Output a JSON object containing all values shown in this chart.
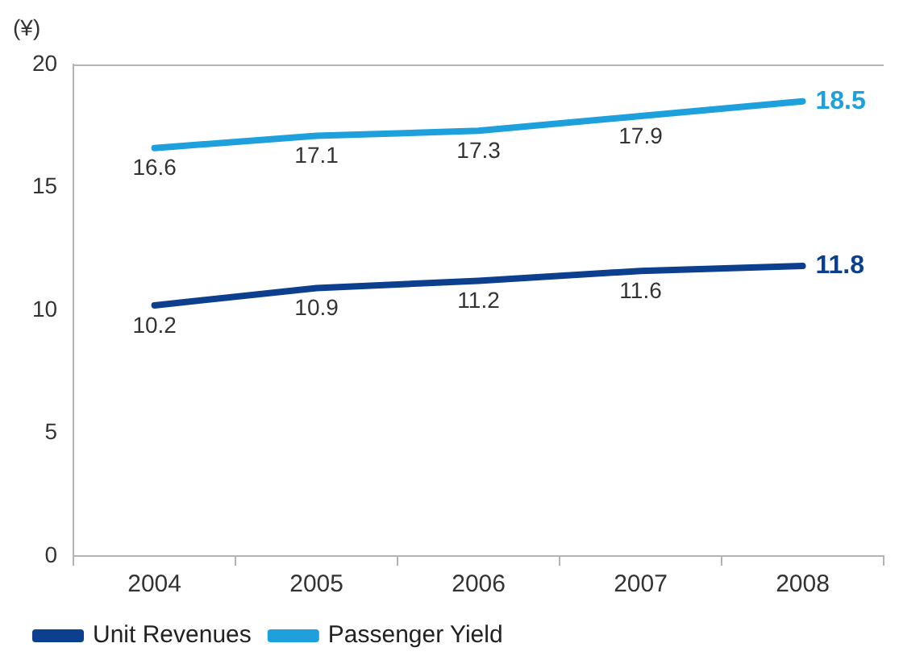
{
  "chart_data": {
    "type": "line",
    "ylabel": "(¥)",
    "categories": [
      "2004",
      "2005",
      "2006",
      "2007",
      "2008"
    ],
    "series": [
      {
        "name": "Unit Revenues",
        "color": "#0d3f8f",
        "values": [
          10.2,
          10.9,
          11.2,
          11.6,
          11.8
        ]
      },
      {
        "name": "Passenger Yield",
        "color": "#1ea0dc",
        "values": [
          16.6,
          17.1,
          17.3,
          17.9,
          18.5
        ]
      }
    ],
    "ylim": [
      0,
      20
    ],
    "yticks": [
      0,
      5,
      10,
      15,
      20
    ],
    "grid": false,
    "legend": "bottom left",
    "marker": "none",
    "line_style": "solid",
    "data_labels": true
  }
}
